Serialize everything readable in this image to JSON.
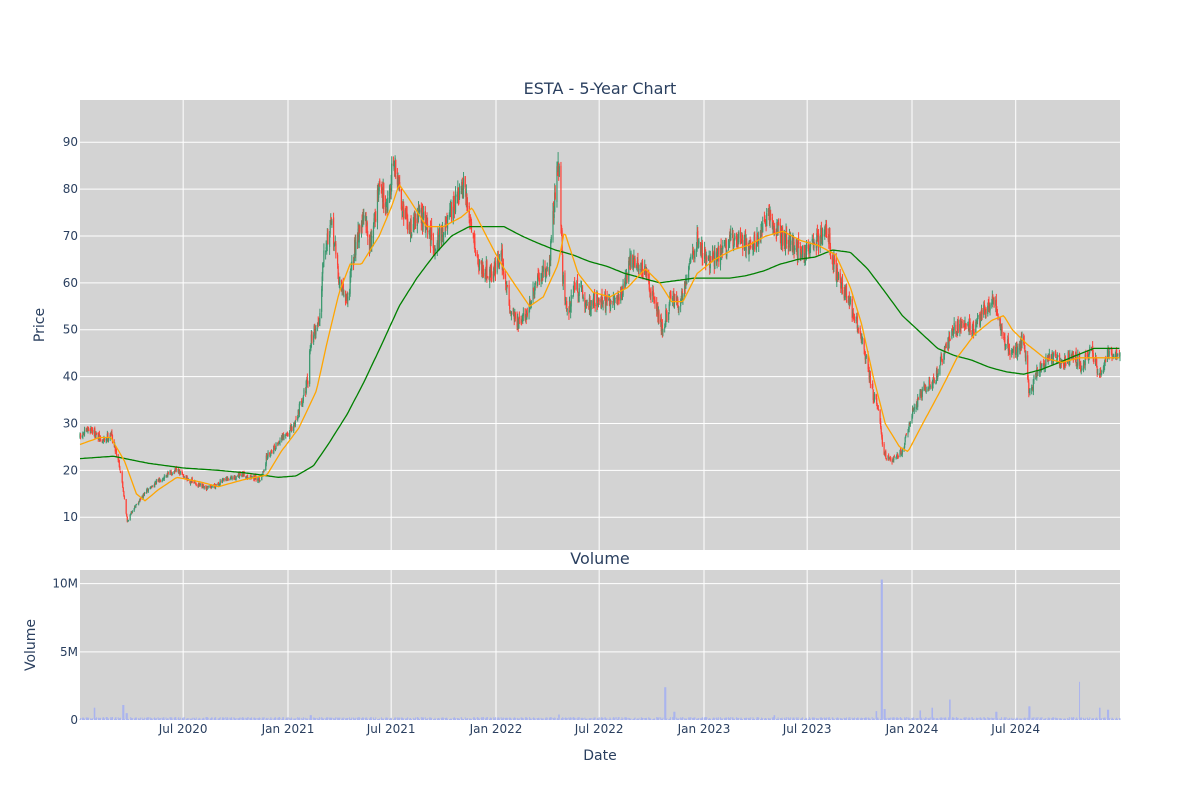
{
  "chart_data": [
    {
      "type": "candlestick",
      "title": "ESTA - 5-Year Chart",
      "ylabel": "Price",
      "xlabel": "",
      "x_range": [
        "2020-01-02",
        "2024-12-31"
      ],
      "ylim": [
        3,
        99
      ],
      "yticks": [
        10,
        20,
        30,
        40,
        50,
        60,
        70,
        80,
        90
      ],
      "grid": true,
      "colors": {
        "background": "#d3d3d3",
        "increasing": "#3d9970",
        "decreasing": "#ff4136",
        "ma_short": "#ffa500",
        "ma_long": "#008000",
        "grid": "#ffffff"
      },
      "close_keypoints": [
        [
          "2020-01-02",
          27
        ],
        [
          "2020-01-20",
          29
        ],
        [
          "2020-02-10",
          26
        ],
        [
          "2020-02-25",
          28
        ],
        [
          "2020-03-10",
          22
        ],
        [
          "2020-03-20",
          14
        ],
        [
          "2020-03-25",
          9
        ],
        [
          "2020-04-05",
          12
        ],
        [
          "2020-05-01",
          16
        ],
        [
          "2020-06-01",
          19
        ],
        [
          "2020-06-20",
          20
        ],
        [
          "2020-07-10",
          18
        ],
        [
          "2020-08-10",
          16
        ],
        [
          "2020-09-15",
          18
        ],
        [
          "2020-10-15",
          19
        ],
        [
          "2020-11-15",
          18
        ],
        [
          "2020-11-25",
          23
        ],
        [
          "2020-12-15",
          26
        ],
        [
          "2021-01-10",
          29
        ],
        [
          "2021-01-25",
          35
        ],
        [
          "2021-02-05",
          39
        ],
        [
          "2021-02-10",
          48
        ],
        [
          "2021-02-25",
          52
        ],
        [
          "2021-03-05",
          68
        ],
        [
          "2021-03-20",
          72
        ],
        [
          "2021-04-01",
          60
        ],
        [
          "2021-04-15",
          56
        ],
        [
          "2021-05-01",
          70
        ],
        [
          "2021-05-15",
          74
        ],
        [
          "2021-05-25",
          68
        ],
        [
          "2021-06-10",
          80
        ],
        [
          "2021-06-25",
          77
        ],
        [
          "2021-07-05",
          86
        ],
        [
          "2021-07-15",
          80
        ],
        [
          "2021-08-01",
          71
        ],
        [
          "2021-08-20",
          75
        ],
        [
          "2021-09-15",
          68
        ],
        [
          "2021-10-10",
          73
        ],
        [
          "2021-10-25",
          78
        ],
        [
          "2021-11-05",
          80
        ],
        [
          "2021-11-20",
          72
        ],
        [
          "2021-12-01",
          64
        ],
        [
          "2021-12-25",
          62
        ],
        [
          "2022-01-10",
          66
        ],
        [
          "2022-01-25",
          55
        ],
        [
          "2022-02-10",
          51
        ],
        [
          "2022-02-25",
          54
        ],
        [
          "2022-03-15",
          60
        ],
        [
          "2022-04-05",
          64
        ],
        [
          "2022-04-15",
          80
        ],
        [
          "2022-04-22",
          86
        ],
        [
          "2022-04-28",
          62
        ],
        [
          "2022-05-05",
          53
        ],
        [
          "2022-05-20",
          60
        ],
        [
          "2022-06-10",
          55
        ],
        [
          "2022-07-01",
          57
        ],
        [
          "2022-07-20",
          55
        ],
        [
          "2022-08-10",
          58
        ],
        [
          "2022-08-25",
          65
        ],
        [
          "2022-09-15",
          63
        ],
        [
          "2022-10-05",
          57
        ],
        [
          "2022-10-20",
          50
        ],
        [
          "2022-11-05",
          57
        ],
        [
          "2022-11-20",
          55
        ],
        [
          "2022-12-05",
          64
        ],
        [
          "2022-12-20",
          69
        ],
        [
          "2023-01-10",
          64
        ],
        [
          "2023-02-01",
          67
        ],
        [
          "2023-03-01",
          70
        ],
        [
          "2023-03-20",
          68
        ],
        [
          "2023-04-10",
          70
        ],
        [
          "2023-04-25",
          74
        ],
        [
          "2023-05-15",
          70
        ],
        [
          "2023-06-05",
          68
        ],
        [
          "2023-06-25",
          66
        ],
        [
          "2023-07-15",
          69
        ],
        [
          "2023-08-05",
          71
        ],
        [
          "2023-08-20",
          62
        ],
        [
          "2023-09-05",
          58
        ],
        [
          "2023-09-25",
          52
        ],
        [
          "2023-10-10",
          45
        ],
        [
          "2023-10-25",
          36
        ],
        [
          "2023-11-05",
          32
        ],
        [
          "2023-11-12",
          24
        ],
        [
          "2023-11-25",
          22
        ],
        [
          "2023-12-15",
          24
        ],
        [
          "2024-01-01",
          32
        ],
        [
          "2024-01-20",
          37
        ],
        [
          "2024-02-10",
          39
        ],
        [
          "2024-02-25",
          45
        ],
        [
          "2024-03-15",
          50
        ],
        [
          "2024-04-01",
          52
        ],
        [
          "2024-04-20",
          50
        ],
        [
          "2024-05-10",
          55
        ],
        [
          "2024-05-25",
          56
        ],
        [
          "2024-06-10",
          48
        ],
        [
          "2024-06-25",
          45
        ],
        [
          "2024-07-15",
          48
        ],
        [
          "2024-07-25",
          36
        ],
        [
          "2024-08-10",
          42
        ],
        [
          "2024-09-01",
          44
        ],
        [
          "2024-09-20",
          43
        ],
        [
          "2024-10-10",
          45
        ],
        [
          "2024-10-25",
          42
        ],
        [
          "2024-11-10",
          46
        ],
        [
          "2024-11-25",
          40
        ],
        [
          "2024-12-10",
          45
        ],
        [
          "2024-12-31",
          44
        ]
      ],
      "ma_short_keypoints": [
        [
          "2020-01-02",
          25.5
        ],
        [
          "2020-02-05",
          27
        ],
        [
          "2020-02-25",
          27
        ],
        [
          "2020-03-20",
          22
        ],
        [
          "2020-04-10",
          15
        ],
        [
          "2020-04-25",
          13.5
        ],
        [
          "2020-05-20",
          16
        ],
        [
          "2020-06-20",
          18.5
        ],
        [
          "2020-08-01",
          17.5
        ],
        [
          "2020-09-01",
          16.5
        ],
        [
          "2020-10-15",
          18
        ],
        [
          "2020-11-25",
          19
        ],
        [
          "2020-12-20",
          24
        ],
        [
          "2021-01-20",
          29
        ],
        [
          "2021-02-20",
          37
        ],
        [
          "2021-03-10",
          47
        ],
        [
          "2021-04-01",
          58
        ],
        [
          "2021-04-20",
          64
        ],
        [
          "2021-05-10",
          64
        ],
        [
          "2021-06-10",
          70
        ],
        [
          "2021-07-01",
          76
        ],
        [
          "2021-07-15",
          81
        ],
        [
          "2021-08-01",
          78
        ],
        [
          "2021-09-01",
          72
        ],
        [
          "2021-10-01",
          72
        ],
        [
          "2021-11-01",
          74
        ],
        [
          "2021-11-20",
          76
        ],
        [
          "2021-12-15",
          70
        ],
        [
          "2022-01-10",
          64
        ],
        [
          "2022-02-01",
          60
        ],
        [
          "2022-03-01",
          55
        ],
        [
          "2022-03-25",
          57
        ],
        [
          "2022-04-20",
          64
        ],
        [
          "2022-05-01",
          71
        ],
        [
          "2022-05-25",
          62
        ],
        [
          "2022-06-20",
          58
        ],
        [
          "2022-07-20",
          57
        ],
        [
          "2022-08-20",
          59
        ],
        [
          "2022-09-20",
          63
        ],
        [
          "2022-10-15",
          60
        ],
        [
          "2022-11-05",
          56
        ],
        [
          "2022-11-25",
          56
        ],
        [
          "2022-12-20",
          62
        ],
        [
          "2023-01-20",
          65
        ],
        [
          "2023-02-20",
          67
        ],
        [
          "2023-03-20",
          68
        ],
        [
          "2023-04-20",
          70
        ],
        [
          "2023-05-20",
          71
        ],
        [
          "2023-06-20",
          69
        ],
        [
          "2023-07-20",
          68
        ],
        [
          "2023-08-20",
          66
        ],
        [
          "2023-09-15",
          59
        ],
        [
          "2023-10-05",
          51
        ],
        [
          "2023-10-25",
          40
        ],
        [
          "2023-11-15",
          30
        ],
        [
          "2023-12-10",
          25
        ],
        [
          "2023-12-25",
          24
        ],
        [
          "2024-01-20",
          30
        ],
        [
          "2024-02-20",
          37
        ],
        [
          "2024-03-20",
          44
        ],
        [
          "2024-04-20",
          49
        ],
        [
          "2024-05-20",
          52
        ],
        [
          "2024-06-10",
          53
        ],
        [
          "2024-06-25",
          50
        ],
        [
          "2024-07-20",
          47
        ],
        [
          "2024-08-20",
          44
        ],
        [
          "2024-09-20",
          43
        ],
        [
          "2024-10-20",
          44
        ],
        [
          "2024-11-20",
          44
        ],
        [
          "2024-12-31",
          44
        ]
      ],
      "ma_long_keypoints": [
        [
          "2020-01-02",
          22.5
        ],
        [
          "2020-03-01",
          23
        ],
        [
          "2020-05-01",
          21.5
        ],
        [
          "2020-07-01",
          20.5
        ],
        [
          "2020-09-01",
          20
        ],
        [
          "2020-10-15",
          19.5
        ],
        [
          "2020-11-15",
          19
        ],
        [
          "2020-12-15",
          18.5
        ],
        [
          "2021-01-15",
          18.8
        ],
        [
          "2021-02-15",
          21
        ],
        [
          "2021-03-15",
          26
        ],
        [
          "2021-04-15",
          32
        ],
        [
          "2021-05-15",
          39
        ],
        [
          "2021-06-15",
          47
        ],
        [
          "2021-07-15",
          55
        ],
        [
          "2021-08-15",
          61
        ],
        [
          "2021-09-15",
          66
        ],
        [
          "2021-10-15",
          70
        ],
        [
          "2021-11-15",
          72
        ],
        [
          "2021-12-15",
          72
        ],
        [
          "2022-01-15",
          72
        ],
        [
          "2022-02-15",
          70
        ],
        [
          "2022-03-15",
          68.5
        ],
        [
          "2022-04-15",
          67
        ],
        [
          "2022-05-15",
          66
        ],
        [
          "2022-06-15",
          64.5
        ],
        [
          "2022-07-15",
          63.5
        ],
        [
          "2022-08-15",
          62
        ],
        [
          "2022-09-15",
          61
        ],
        [
          "2022-10-15",
          60
        ],
        [
          "2022-11-15",
          60.5
        ],
        [
          "2022-12-15",
          61
        ],
        [
          "2023-02-15",
          61
        ],
        [
          "2023-03-15",
          61.5
        ],
        [
          "2023-04-15",
          62.5
        ],
        [
          "2023-05-15",
          64
        ],
        [
          "2023-06-15",
          65
        ],
        [
          "2023-07-15",
          65.5
        ],
        [
          "2023-08-15",
          67
        ],
        [
          "2023-09-15",
          66.5
        ],
        [
          "2023-10-15",
          63
        ],
        [
          "2023-11-15",
          58
        ],
        [
          "2023-12-15",
          53
        ],
        [
          "2024-01-15",
          49.5
        ],
        [
          "2024-02-15",
          46
        ],
        [
          "2024-03-15",
          44.5
        ],
        [
          "2024-04-15",
          43.5
        ],
        [
          "2024-05-15",
          42
        ],
        [
          "2024-06-15",
          41
        ],
        [
          "2024-07-15",
          40.5
        ],
        [
          "2024-08-15",
          41.5
        ],
        [
          "2024-09-15",
          43
        ],
        [
          "2024-10-15",
          44.5
        ],
        [
          "2024-11-15",
          46
        ],
        [
          "2024-12-31",
          46
        ]
      ]
    },
    {
      "type": "bar",
      "title": "Volume",
      "xlabel": "Date",
      "ylabel": "Volume",
      "ylim": [
        0,
        11000000
      ],
      "yticks": [
        0,
        5000000,
        10000000
      ],
      "ytick_labels": [
        "0",
        "5M",
        "10M"
      ],
      "xticks": [
        "2020-07-01",
        "2021-01-01",
        "2021-07-01",
        "2022-01-01",
        "2022-07-01",
        "2023-01-01",
        "2023-07-01",
        "2024-01-01",
        "2024-07-01"
      ],
      "xtick_labels": [
        "Jul 2020",
        "Jan 2021",
        "Jul 2021",
        "Jan 2022",
        "Jul 2022",
        "Jan 2023",
        "Jul 2023",
        "Jan 2024",
        "Jul 2024"
      ],
      "grid": true,
      "colors": {
        "bar": "#aab4ee"
      },
      "base_volume": 120000,
      "spikes": [
        [
          "2020-01-27",
          900000
        ],
        [
          "2020-03-18",
          1100000
        ],
        [
          "2020-03-24",
          500000
        ],
        [
          "2021-02-10",
          350000
        ],
        [
          "2022-04-22",
          400000
        ],
        [
          "2022-10-25",
          2400000
        ],
        [
          "2022-11-10",
          600000
        ],
        [
          "2023-05-05",
          350000
        ],
        [
          "2023-10-30",
          650000
        ],
        [
          "2023-11-09",
          10300000
        ],
        [
          "2023-11-14",
          800000
        ],
        [
          "2024-01-15",
          700000
        ],
        [
          "2024-02-05",
          900000
        ],
        [
          "2024-03-08",
          1500000
        ],
        [
          "2024-05-28",
          600000
        ],
        [
          "2024-07-25",
          1000000
        ],
        [
          "2024-10-20",
          2800000
        ],
        [
          "2024-11-25",
          900000
        ],
        [
          "2024-12-10",
          750000
        ]
      ]
    }
  ]
}
